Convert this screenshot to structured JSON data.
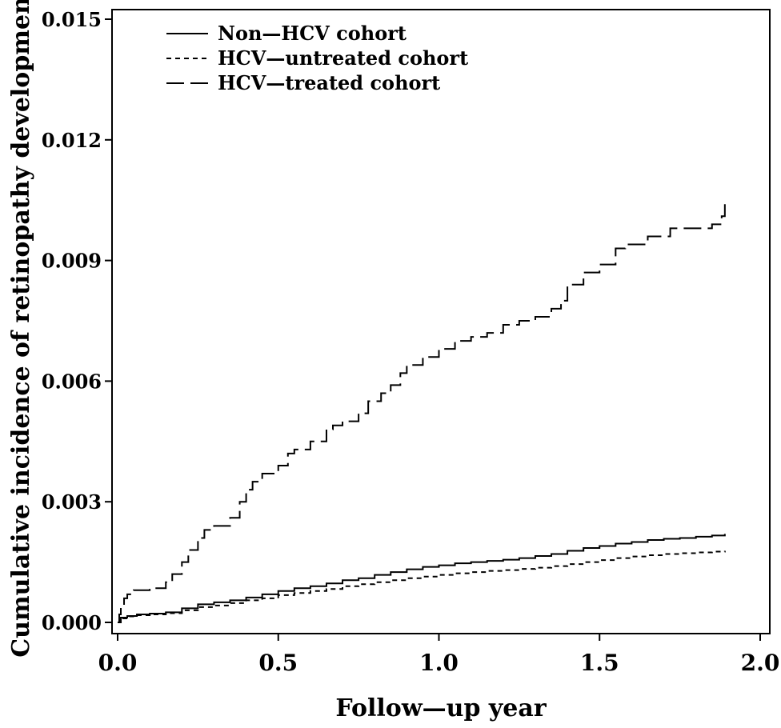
{
  "chart_data": {
    "type": "line",
    "step": true,
    "xlabel": "Follow—up year",
    "ylabel": "Cumulative incidence of retinopathy development",
    "xlim": [
      0.0,
      2.0
    ],
    "ylim": [
      0.0,
      0.015
    ],
    "xticks": [
      "0.0",
      "0.5",
      "1.0",
      "1.5",
      "2.0"
    ],
    "yticks": [
      "0.000",
      "0.003",
      "0.006",
      "0.009",
      "0.012",
      "0.015"
    ],
    "grid": false,
    "legend_position": "top-left",
    "series": [
      {
        "name": "Non—HCV cohort",
        "style": "solid",
        "x": [
          0.0,
          0.01,
          0.03,
          0.06,
          0.1,
          0.15,
          0.2,
          0.25,
          0.3,
          0.35,
          0.4,
          0.45,
          0.5,
          0.55,
          0.6,
          0.65,
          0.7,
          0.75,
          0.8,
          0.85,
          0.9,
          0.95,
          1.0,
          1.05,
          1.1,
          1.15,
          1.2,
          1.25,
          1.3,
          1.35,
          1.4,
          1.45,
          1.5,
          1.55,
          1.6,
          1.65,
          1.7,
          1.75,
          1.8,
          1.85,
          1.89
        ],
        "y": [
          0.0,
          0.00012,
          0.00016,
          0.0002,
          0.00022,
          0.00025,
          0.00035,
          0.00045,
          0.0005,
          0.00055,
          0.00062,
          0.0007,
          0.00078,
          0.00085,
          0.0009,
          0.00097,
          0.00105,
          0.0011,
          0.00118,
          0.00125,
          0.00132,
          0.00138,
          0.00142,
          0.00147,
          0.0015,
          0.00153,
          0.00156,
          0.0016,
          0.00165,
          0.0017,
          0.00178,
          0.00185,
          0.0019,
          0.00196,
          0.002,
          0.00205,
          0.00208,
          0.0021,
          0.00213,
          0.00216,
          0.0022
        ]
      },
      {
        "name": "HCV—untreated cohort",
        "style": "dashed",
        "x": [
          0.0,
          0.01,
          0.03,
          0.06,
          0.1,
          0.15,
          0.2,
          0.25,
          0.3,
          0.35,
          0.4,
          0.45,
          0.5,
          0.55,
          0.6,
          0.65,
          0.7,
          0.75,
          0.8,
          0.85,
          0.9,
          0.95,
          1.0,
          1.05,
          1.1,
          1.15,
          1.2,
          1.25,
          1.3,
          1.35,
          1.4,
          1.45,
          1.5,
          1.55,
          1.6,
          1.65,
          1.7,
          1.75,
          1.8,
          1.85,
          1.89
        ],
        "y": [
          0.0,
          0.0001,
          0.00015,
          0.00018,
          0.0002,
          0.00023,
          0.0003,
          0.00038,
          0.00042,
          0.00048,
          0.00055,
          0.0006,
          0.00068,
          0.00073,
          0.00078,
          0.00083,
          0.0009,
          0.00095,
          0.001,
          0.00105,
          0.0011,
          0.00114,
          0.00118,
          0.00122,
          0.00125,
          0.00128,
          0.0013,
          0.00133,
          0.00136,
          0.0014,
          0.00145,
          0.0015,
          0.00155,
          0.0016,
          0.00164,
          0.00167,
          0.0017,
          0.00172,
          0.00174,
          0.00176,
          0.00178
        ]
      },
      {
        "name": "HCV—treated cohort",
        "style": "longdash",
        "x": [
          0.0,
          0.005,
          0.01,
          0.02,
          0.03,
          0.05,
          0.1,
          0.15,
          0.17,
          0.2,
          0.22,
          0.25,
          0.27,
          0.3,
          0.35,
          0.38,
          0.4,
          0.42,
          0.45,
          0.5,
          0.53,
          0.55,
          0.6,
          0.65,
          0.67,
          0.7,
          0.75,
          0.78,
          0.82,
          0.85,
          0.88,
          0.9,
          0.95,
          1.0,
          1.05,
          1.1,
          1.15,
          1.2,
          1.25,
          1.3,
          1.35,
          1.38,
          1.4,
          1.45,
          1.5,
          1.55,
          1.58,
          1.65,
          1.72,
          1.75,
          1.8,
          1.85,
          1.88,
          1.89
        ],
        "y": [
          0.0,
          0.0002,
          0.0004,
          0.0006,
          0.0007,
          0.0008,
          0.00085,
          0.001,
          0.0012,
          0.0015,
          0.0018,
          0.0021,
          0.0023,
          0.0024,
          0.0026,
          0.003,
          0.0033,
          0.0035,
          0.0037,
          0.0039,
          0.0042,
          0.0043,
          0.0045,
          0.0048,
          0.0049,
          0.005,
          0.0052,
          0.0055,
          0.0057,
          0.0059,
          0.0062,
          0.0064,
          0.0066,
          0.0068,
          0.007,
          0.0071,
          0.0072,
          0.0074,
          0.0075,
          0.0076,
          0.0078,
          0.008,
          0.0084,
          0.0087,
          0.0089,
          0.0093,
          0.0094,
          0.0096,
          0.0098,
          0.0098,
          0.0098,
          0.0099,
          0.0101,
          0.0104
        ]
      }
    ]
  }
}
